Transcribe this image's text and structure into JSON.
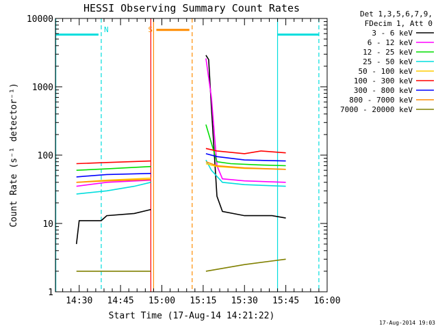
{
  "chart_data": {
    "type": "line",
    "title": "HESSI Observing Summary Count Rates",
    "xlabel": "Start Time (17-Aug-14 14:21:22)",
    "ylabel": "Count Rate (s⁻¹ detector⁻¹)",
    "ylog": true,
    "xlim": [
      "14:21:22",
      "16:00:00"
    ],
    "ylim": [
      1,
      10000
    ],
    "x_ticks": [
      "14:30",
      "14:45",
      "15:00",
      "15:15",
      "15:30",
      "15:45",
      "16:00"
    ],
    "y_ticks": [
      "1",
      "10",
      "100",
      "1000",
      "10000"
    ],
    "legend_header": [
      "Det 1,3,5,6,7,9,",
      "FDecim 1, Att 0"
    ],
    "legend_position": "right",
    "timestamp": "17-Aug-2014 19:03",
    "markers": [
      {
        "label": "N",
        "color": "#00dddd",
        "x": "14:38",
        "kind": "night-end"
      },
      {
        "label": "S",
        "color": "#ff8c00",
        "x": "14:57",
        "kind": "saa-start"
      }
    ],
    "bars": [
      {
        "color": "#00dddd",
        "x_start": "14:21:22",
        "x_end": "14:37",
        "y": 5800
      },
      {
        "color": "#ff8c00",
        "x_start": "14:58",
        "x_end": "15:10",
        "y": 6800
      },
      {
        "color": "#00dddd",
        "x_start": "15:42",
        "x_end": "15:57",
        "y": 5800
      }
    ],
    "vlines": [
      {
        "x": "14:21:30",
        "color": "#00dddd",
        "style": "solid"
      },
      {
        "x": "14:38",
        "color": "#00dddd",
        "style": "dashed"
      },
      {
        "x": "14:56",
        "color": "#ff0000",
        "style": "solid"
      },
      {
        "x": "14:57",
        "color": "#ff8c00",
        "style": "solid"
      },
      {
        "x": "15:11",
        "color": "#ff8c00",
        "style": "dashed"
      },
      {
        "x": "15:42",
        "color": "#00dddd",
        "style": "solid"
      },
      {
        "x": "15:57",
        "color": "#00dddd",
        "style": "dashed"
      }
    ],
    "series": [
      {
        "name": "3 - 6 keV",
        "color": "#000000",
        "seg1": {
          "x": [
            "14:29",
            "14:30",
            "14:38",
            "14:40",
            "14:50",
            "14:56"
          ],
          "y": [
            5,
            11,
            11,
            13,
            14,
            16
          ]
        },
        "seg2": {
          "x": [
            "15:16",
            "15:17",
            "15:18",
            "15:20",
            "15:22",
            "15:30",
            "15:40",
            "15:45"
          ],
          "y": [
            2900,
            2500,
            500,
            25,
            15,
            13,
            13,
            12
          ]
        }
      },
      {
        "name": "6 - 12 keV",
        "color": "#ff00ff",
        "seg1": {
          "x": [
            "14:29",
            "14:40",
            "14:56"
          ],
          "y": [
            35,
            40,
            43
          ]
        },
        "seg2": {
          "x": [
            "15:16",
            "15:18",
            "15:20",
            "15:22",
            "15:30",
            "15:45"
          ],
          "y": [
            2600,
            700,
            70,
            45,
            42,
            40
          ]
        }
      },
      {
        "name": "12 - 25 keV",
        "color": "#00dd00",
        "seg1": {
          "x": [
            "14:29",
            "14:40",
            "14:56"
          ],
          "y": [
            60,
            63,
            68
          ]
        },
        "seg2": {
          "x": [
            "15:16",
            "15:18",
            "15:20",
            "15:25",
            "15:35",
            "15:45"
          ],
          "y": [
            280,
            150,
            80,
            75,
            72,
            70
          ]
        }
      },
      {
        "name": "25 - 50 keV",
        "color": "#00dddd",
        "seg1": {
          "x": [
            "14:29",
            "14:40",
            "14:50",
            "14:56"
          ],
          "y": [
            27,
            30,
            35,
            40
          ]
        },
        "seg2": {
          "x": [
            "15:16",
            "15:18",
            "15:22",
            "15:30",
            "15:45"
          ],
          "y": [
            85,
            60,
            40,
            37,
            35
          ]
        }
      },
      {
        "name": "50 - 100 keV",
        "color": "#ffcc00",
        "seg1": {
          "x": [
            "14:29",
            "14:40",
            "14:56"
          ],
          "y": [
            40,
            43,
            46
          ]
        },
        "seg2": {
          "x": [
            "15:16",
            "15:20",
            "15:30",
            "15:45"
          ],
          "y": [
            75,
            68,
            64,
            62
          ]
        }
      },
      {
        "name": "100 - 300 keV",
        "color": "#ff0000",
        "seg1": {
          "x": [
            "14:29",
            "14:40",
            "14:56"
          ],
          "y": [
            75,
            78,
            82
          ]
        },
        "seg2": {
          "x": [
            "15:16",
            "15:20",
            "15:30",
            "15:36",
            "15:45"
          ],
          "y": [
            125,
            115,
            105,
            115,
            108
          ]
        }
      },
      {
        "name": "300 - 800 keV",
        "color": "#0000ff",
        "seg1": {
          "x": [
            "14:29",
            "14:40",
            "14:56"
          ],
          "y": [
            48,
            52,
            54
          ]
        },
        "seg2": {
          "x": [
            "15:16",
            "15:20",
            "15:30",
            "15:45"
          ],
          "y": [
            105,
            95,
            85,
            82
          ]
        }
      },
      {
        "name": "800 - 7000 keV",
        "color": "#ff8c00",
        "seg1": {
          "x": [
            "14:29",
            "14:40",
            "14:56"
          ],
          "y": [
            40,
            42,
            44
          ]
        },
        "seg2": {
          "x": [
            "15:16",
            "15:20",
            "15:30",
            "15:45"
          ],
          "y": [
            80,
            70,
            65,
            62
          ]
        }
      },
      {
        "name": "7000 - 20000 keV",
        "color": "#808000",
        "seg1": {
          "x": [
            "14:29",
            "14:56"
          ],
          "y": [
            2,
            2
          ]
        },
        "seg2": {
          "x": [
            "15:16",
            "15:30",
            "15:45"
          ],
          "y": [
            2,
            2.5,
            3
          ]
        }
      }
    ]
  }
}
